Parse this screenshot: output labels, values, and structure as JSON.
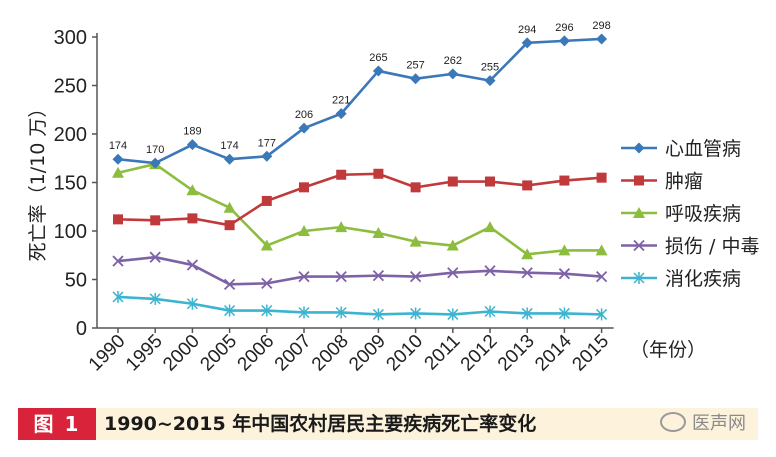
{
  "chart_data": {
    "type": "line",
    "categories": [
      "1990",
      "1995",
      "2000",
      "2005",
      "2006",
      "2007",
      "2008",
      "2009",
      "2010",
      "2011",
      "2012",
      "2013",
      "2014",
      "2015"
    ],
    "ylabel": "死亡率（1/10 万）",
    "xlabel": "（年份）",
    "ylim": [
      0,
      300
    ],
    "yticks": [
      0,
      50,
      100,
      150,
      200,
      250,
      300
    ],
    "grid": false,
    "legend_position": "right",
    "series": [
      {
        "name": "心血管病",
        "color": "#3b78b8",
        "marker": "diamond",
        "values": [
          174,
          170,
          189,
          174,
          177,
          206,
          221,
          265,
          257,
          262,
          255,
          294,
          296,
          298
        ],
        "labels": [
          "174",
          "170",
          "189",
          "174",
          "177",
          "206",
          "221",
          "265",
          "257",
          "262",
          "255",
          "294",
          "296",
          "298"
        ]
      },
      {
        "name": "肿瘤",
        "color": "#c0393b",
        "marker": "square",
        "values": [
          112,
          111,
          113,
          106,
          131,
          145,
          158,
          159,
          145,
          151,
          151,
          147,
          152,
          155
        ]
      },
      {
        "name": "呼吸疾病",
        "color": "#8cbd3f",
        "marker": "triangle",
        "values": [
          160,
          169,
          142,
          124,
          85,
          100,
          104,
          98,
          89,
          85,
          104,
          76,
          80,
          80
        ]
      },
      {
        "name": "损伤 / 中毒",
        "color": "#7e62a6",
        "marker": "x",
        "values": [
          69,
          73,
          65,
          45,
          46,
          53,
          53,
          54,
          53,
          57,
          59,
          57,
          56,
          53
        ]
      },
      {
        "name": "消化疾病",
        "color": "#3cb4cf",
        "marker": "star",
        "values": [
          32,
          30,
          25,
          18,
          18,
          16,
          16,
          14,
          15,
          14,
          17,
          15,
          15,
          14
        ]
      }
    ]
  },
  "caption": {
    "fig_label": "图 1",
    "title": "1990~2015 年中国农村居民主要疾病死亡率变化"
  },
  "watermark": {
    "text": "医声网"
  }
}
